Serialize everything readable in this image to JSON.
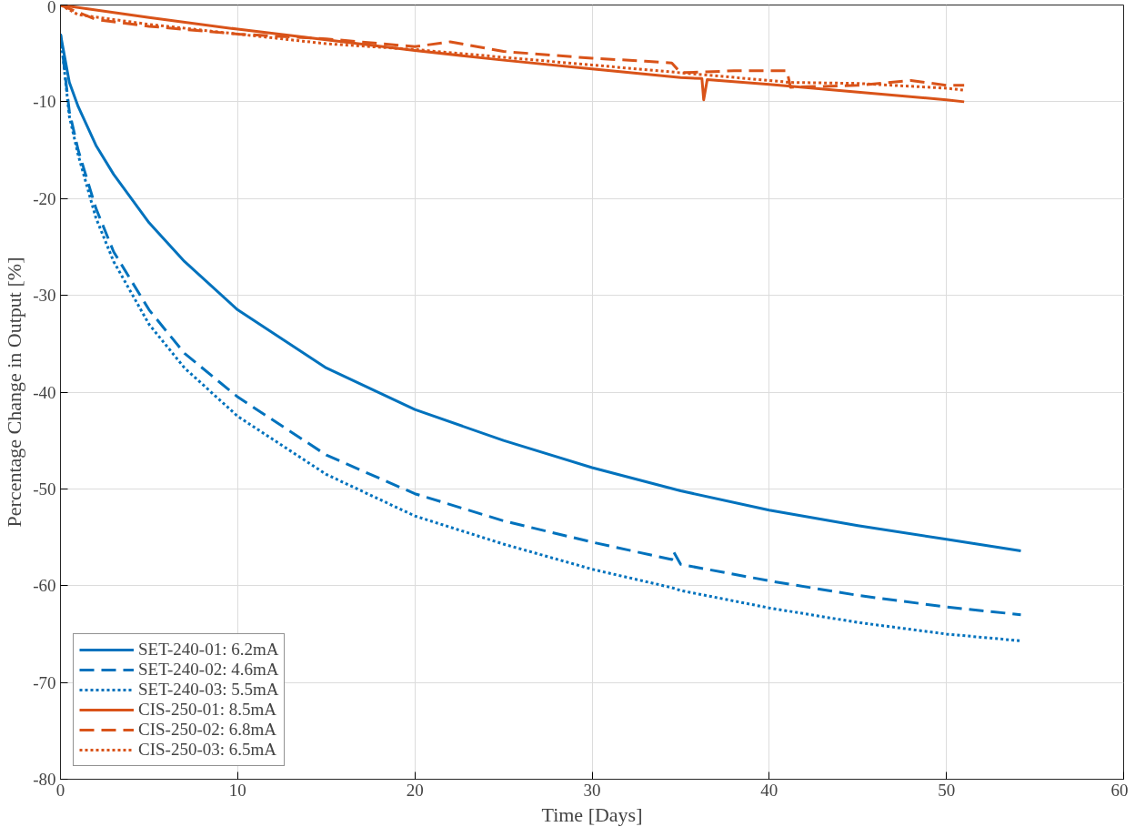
{
  "chart_data": {
    "type": "line",
    "xlabel": "Time [Days]",
    "ylabel": "Percentage Change in Output [%]",
    "xlim": [
      0,
      60
    ],
    "ylim": [
      -80,
      0
    ],
    "xticks": [
      0,
      10,
      20,
      30,
      40,
      50,
      60
    ],
    "yticks": [
      -80,
      -70,
      -60,
      -50,
      -40,
      -30,
      -20,
      -10,
      0
    ],
    "grid": true,
    "legend": "bottom left",
    "marker": "none",
    "series": [
      {
        "name": "SET-240-01: 6.2mA",
        "color": "#0072bd",
        "line_style": "solid",
        "x": [
          0,
          0.5,
          1,
          2,
          3,
          5,
          7,
          10,
          15,
          20,
          25,
          30,
          35,
          40,
          45,
          50,
          54.2
        ],
        "values": [
          -3,
          -8,
          -10.5,
          -14.5,
          -17.5,
          -22.5,
          -26.5,
          -31.5,
          -37.5,
          -41.8,
          -45,
          -47.8,
          -50.2,
          -52.2,
          -53.8,
          -55.2,
          -56.4
        ]
      },
      {
        "name": "SET-240-02: 4.6mA",
        "color": "#0072bd",
        "line_style": "dashed",
        "x": [
          0,
          0.5,
          1,
          2,
          3,
          5,
          7,
          10,
          15,
          20,
          25,
          30,
          34.5,
          34.6,
          35,
          40,
          45,
          50,
          54.2
        ],
        "values": [
          -3,
          -11,
          -15,
          -21,
          -25.5,
          -31.5,
          -36,
          -40.5,
          -46.5,
          -50.5,
          -53.3,
          -55.5,
          -57.3,
          -56.5,
          -57.8,
          -59.5,
          -61,
          -62.2,
          -63
        ]
      },
      {
        "name": "SET-240-03: 5.5mA",
        "color": "#0072bd",
        "line_style": "dotted",
        "x": [
          0,
          0.5,
          1,
          2,
          3,
          5,
          7,
          10,
          15,
          20,
          25,
          30,
          34.5,
          35,
          40,
          45,
          50,
          54.2
        ],
        "values": [
          -3,
          -11.5,
          -15.5,
          -22,
          -26.5,
          -33,
          -37.5,
          -42.5,
          -48.5,
          -52.8,
          -55.7,
          -58.3,
          -60.2,
          -60.5,
          -62.3,
          -63.8,
          -65,
          -65.7
        ]
      },
      {
        "name": "CIS-250-01: 8.5mA",
        "color": "#d95319",
        "line_style": "solid",
        "x": [
          0,
          5,
          10,
          15,
          20,
          25,
          30,
          35,
          36.2,
          36.3,
          36.5,
          40,
          45,
          50,
          51
        ],
        "values": [
          0,
          -1.3,
          -2.5,
          -3.6,
          -4.7,
          -5.7,
          -6.6,
          -7.5,
          -7.6,
          -9.8,
          -7.7,
          -8.2,
          -9,
          -9.8,
          -10
        ]
      },
      {
        "name": "CIS-250-02: 6.8mA",
        "color": "#d95319",
        "line_style": "dashed",
        "x": [
          0,
          2,
          5,
          10,
          15,
          20,
          22,
          25,
          30,
          33,
          34.5,
          35,
          38,
          41,
          41.2,
          45,
          48,
          50,
          51
        ],
        "values": [
          0,
          -1.5,
          -2.2,
          -3,
          -3.5,
          -4.3,
          -3.8,
          -4.8,
          -5.5,
          -5.8,
          -6,
          -7,
          -6.8,
          -6.8,
          -8.5,
          -8.3,
          -7.8,
          -8.3,
          -8.3
        ]
      },
      {
        "name": "CIS-250-03: 6.5mA",
        "color": "#d95319",
        "line_style": "dotted",
        "x": [
          0,
          1,
          5,
          10,
          15,
          20,
          25,
          30,
          35,
          40,
          41.2,
          45,
          50,
          51
        ],
        "values": [
          0,
          -1,
          -2,
          -3,
          -4,
          -4.6,
          -5.4,
          -6.2,
          -7,
          -7.8,
          -8,
          -8.1,
          -8.6,
          -8.8
        ]
      }
    ]
  }
}
